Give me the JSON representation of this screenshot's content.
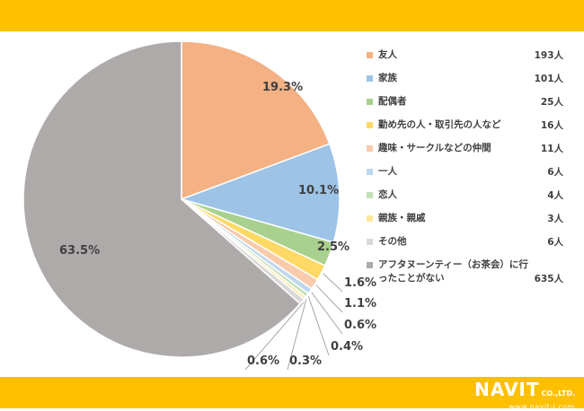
{
  "logo": {
    "brand": "NAVIT",
    "suffix": "CO.,LTD.",
    "url": "www.navit-j.com"
  },
  "chart_data": {
    "type": "pie",
    "slices": [
      {
        "name": "友人",
        "count_label": "193人",
        "percent": 19.3,
        "label": "19.3%",
        "color": "#f4b183"
      },
      {
        "name": "家族",
        "count_label": "101人",
        "percent": 10.1,
        "label": "10.1%",
        "color": "#9dc3e6"
      },
      {
        "name": "配偶者",
        "count_label": "25人",
        "percent": 2.5,
        "label": "2.5%",
        "color": "#a9d18e"
      },
      {
        "name": "勤め先の人・取引先の人など",
        "count_label": "16人",
        "percent": 1.6,
        "label": "1.6%",
        "color": "#ffd966"
      },
      {
        "name": "趣味・サークルなどの仲間",
        "count_label": "11人",
        "percent": 1.1,
        "label": "1.1%",
        "color": "#f8cbad"
      },
      {
        "name": "一人",
        "count_label": "6人",
        "percent": 0.6,
        "label": "0.6%",
        "color": "#bdd7ee"
      },
      {
        "name": "恋人",
        "count_label": "4人",
        "percent": 0.4,
        "label": "0.4%",
        "color": "#c5e0b4"
      },
      {
        "name": "親族・親戚",
        "count_label": "3人",
        "percent": 0.3,
        "label": "0.3%",
        "color": "#ffe699"
      },
      {
        "name": "その他",
        "count_label": "6人",
        "percent": 0.6,
        "label": "0.6%",
        "color": "#d9d9d9"
      },
      {
        "name": "アフタヌーンティー（お茶会）に行ったことがない",
        "count_label": "635人",
        "percent": 63.5,
        "label": "63.5%",
        "color": "#aeaaaa"
      }
    ]
  }
}
